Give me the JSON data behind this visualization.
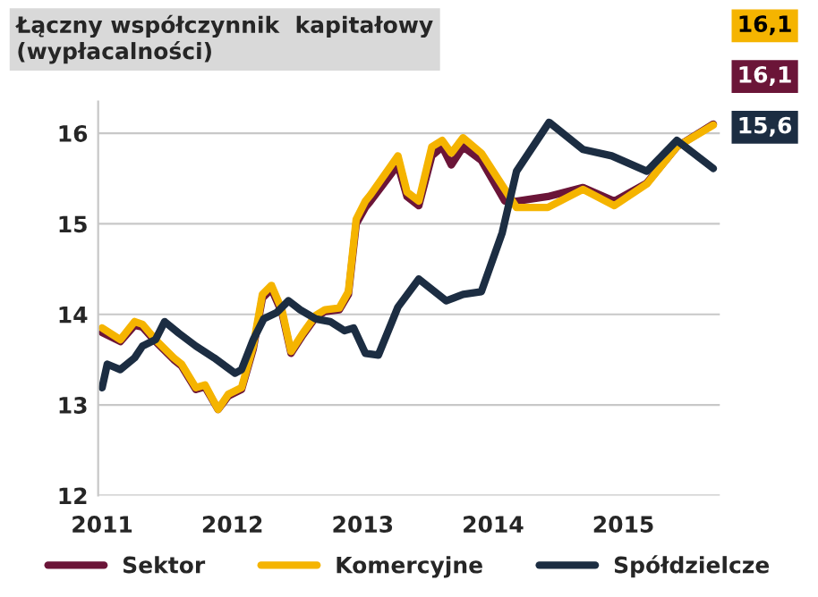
{
  "chart_data": {
    "type": "line",
    "title": "Łączny współczynnik  kapitałowy\n(wypłacalności)",
    "xlim": [
      2010.97,
      2015.74
    ],
    "xticks": [
      2011,
      2012,
      2013,
      2014,
      2015
    ],
    "ylim": [
      12,
      16.35
    ],
    "yticks": [
      12,
      13,
      14,
      15,
      16
    ],
    "grid": "y",
    "legend": "bottom",
    "series": [
      {
        "name": "Sektor",
        "color": "#6b1538",
        "x": [
          2011.0,
          2011.14,
          2011.25,
          2011.31,
          2011.41,
          2011.55,
          2011.61,
          2011.72,
          2011.79,
          2011.89,
          2011.97,
          2012.07,
          2012.16,
          2012.23,
          2012.3,
          2012.38,
          2012.45,
          2012.54,
          2012.64,
          2012.71,
          2012.82,
          2012.89,
          2012.95,
          2013.02,
          2013.06,
          2013.27,
          2013.34,
          2013.43,
          2013.53,
          2013.61,
          2013.68,
          2013.77,
          2013.91,
          2014.09,
          2014.18,
          2014.42,
          2014.69,
          2014.93,
          2015.18,
          2015.41,
          2015.69
        ],
        "values": [
          13.8,
          13.7,
          13.88,
          13.86,
          13.7,
          13.5,
          13.43,
          13.17,
          13.2,
          12.95,
          13.1,
          13.17,
          13.62,
          14.18,
          14.28,
          14.02,
          13.57,
          13.77,
          13.97,
          14.03,
          14.05,
          14.22,
          15.0,
          15.18,
          15.25,
          15.65,
          15.3,
          15.2,
          15.75,
          15.85,
          15.65,
          15.85,
          15.7,
          15.25,
          15.25,
          15.3,
          15.4,
          15.25,
          15.45,
          15.85,
          16.1
        ]
      },
      {
        "name": "Komercyjne",
        "color": "#f5b400",
        "x": [
          2011.0,
          2011.14,
          2011.25,
          2011.31,
          2011.41,
          2011.55,
          2011.61,
          2011.72,
          2011.79,
          2011.89,
          2011.97,
          2012.07,
          2012.16,
          2012.23,
          2012.3,
          2012.38,
          2012.45,
          2012.54,
          2012.64,
          2012.71,
          2012.82,
          2012.89,
          2012.95,
          2013.02,
          2013.06,
          2013.27,
          2013.34,
          2013.43,
          2013.53,
          2013.61,
          2013.68,
          2013.77,
          2013.91,
          2014.09,
          2014.18,
          2014.42,
          2014.69,
          2014.93,
          2015.18,
          2015.41,
          2015.69
        ],
        "values": [
          13.85,
          13.72,
          13.92,
          13.89,
          13.72,
          13.52,
          13.45,
          13.19,
          13.22,
          12.95,
          13.12,
          13.19,
          13.65,
          14.22,
          14.32,
          14.05,
          13.59,
          13.79,
          13.99,
          14.05,
          14.07,
          14.25,
          15.05,
          15.25,
          15.32,
          15.75,
          15.35,
          15.25,
          15.85,
          15.92,
          15.78,
          15.95,
          15.78,
          15.38,
          15.18,
          15.18,
          15.38,
          15.2,
          15.44,
          15.85,
          16.09
        ]
      },
      {
        "name": "Spółdzielcze",
        "color": "#1c2d42",
        "x": [
          2011.0,
          2011.04,
          2011.14,
          2011.25,
          2011.31,
          2011.41,
          2011.48,
          2011.59,
          2011.72,
          2011.86,
          2012.02,
          2012.07,
          2012.16,
          2012.24,
          2012.34,
          2012.43,
          2012.52,
          2012.64,
          2012.75,
          2012.86,
          2012.93,
          2013.02,
          2013.12,
          2013.27,
          2013.43,
          2013.64,
          2013.77,
          2013.91,
          2014.07,
          2014.18,
          2014.43,
          2014.69,
          2014.91,
          2015.18,
          2015.41,
          2015.69
        ],
        "values": [
          13.19,
          13.45,
          13.39,
          13.52,
          13.65,
          13.72,
          13.92,
          13.79,
          13.65,
          13.52,
          13.35,
          13.39,
          13.72,
          13.95,
          14.02,
          14.15,
          14.05,
          13.95,
          13.92,
          13.82,
          13.85,
          13.57,
          13.55,
          14.08,
          14.39,
          14.15,
          14.22,
          14.25,
          14.9,
          15.58,
          16.12,
          15.82,
          15.75,
          15.58,
          15.92,
          15.61
        ]
      }
    ],
    "annotations": [
      "16,1",
      "16,1",
      "15,6"
    ]
  }
}
